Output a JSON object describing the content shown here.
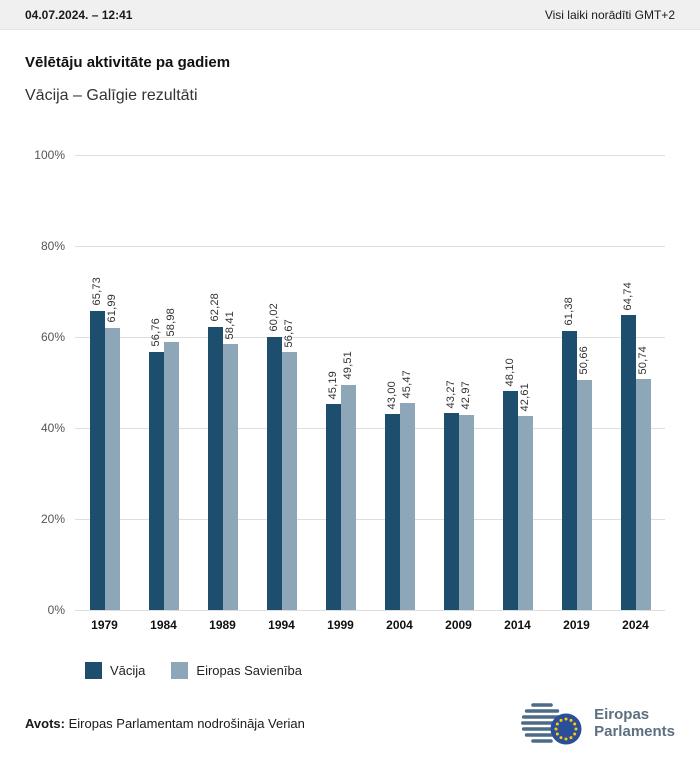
{
  "header": {
    "datetime": "04.07.2024. – 12:41",
    "timezone_note": "Visi laiki norādīti GMT+2"
  },
  "page": {
    "title": "Vēlētāju aktivitāte pa gadiem",
    "subtitle": "Vācija – Galīgie rezultāti"
  },
  "chart_data": {
    "type": "bar",
    "title": "Vēlētāju aktivitāte pa gadiem",
    "subtitle": "Vācija – Galīgie rezultāti",
    "categories": [
      "1979",
      "1984",
      "1989",
      "1994",
      "1999",
      "2004",
      "2009",
      "2014",
      "2019",
      "2024"
    ],
    "series": [
      {
        "id": "vacija",
        "name": "Vācija",
        "color": "#1d4e6d",
        "values": [
          65.73,
          56.76,
          62.28,
          60.02,
          45.19,
          43.0,
          43.27,
          48.1,
          61.38,
          64.74
        ]
      },
      {
        "id": "eiropas-savieniba",
        "name": "Eiropas Savienība",
        "color": "#8ea7b8",
        "values": [
          61.99,
          58.98,
          58.41,
          56.67,
          49.51,
          45.47,
          42.97,
          42.61,
          50.66,
          50.74
        ]
      }
    ],
    "ylim": [
      0,
      100
    ],
    "yticks": [
      {
        "value": 0,
        "label": "0%"
      },
      {
        "value": 20,
        "label": "20%"
      },
      {
        "value": 40,
        "label": "40%"
      },
      {
        "value": 60,
        "label": "60%"
      },
      {
        "value": 80,
        "label": "80%"
      },
      {
        "value": 100,
        "label": "100%"
      }
    ],
    "grid": true,
    "legend_position": "bottom",
    "value_label_format": "decimal-comma",
    "value_label_rotation": 90
  },
  "footer": {
    "source_label": "Avots:",
    "source_text": "Eiropas Parlamentam nodrošināja Verian",
    "logo": {
      "line1": "Eiropas",
      "line2": "Parlaments"
    }
  }
}
